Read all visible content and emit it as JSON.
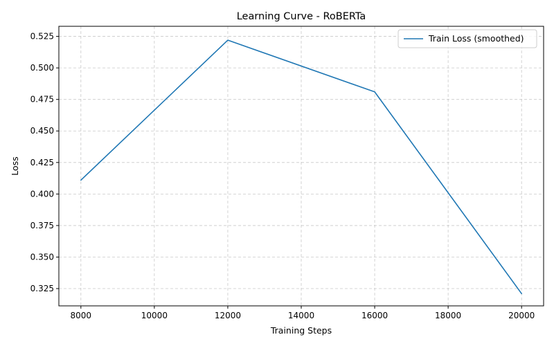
{
  "chart_data": {
    "type": "line",
    "title": "Learning Curve - RoBERTa",
    "xlabel": "Training Steps",
    "ylabel": "Loss",
    "xlim": [
      7400,
      20600
    ],
    "ylim": [
      0.3113,
      0.533
    ],
    "xticks": [
      8000,
      10000,
      12000,
      14000,
      16000,
      18000,
      20000
    ],
    "yticks": [
      0.325,
      0.35,
      0.375,
      0.4,
      0.425,
      0.45,
      0.475,
      0.5,
      0.525
    ],
    "xtick_labels": [
      "8000",
      "10000",
      "12000",
      "14000",
      "16000",
      "18000",
      "20000"
    ],
    "ytick_labels": [
      "0.325",
      "0.350",
      "0.375",
      "0.400",
      "0.425",
      "0.450",
      "0.475",
      "0.500",
      "0.525"
    ],
    "grid": true,
    "legend_position": "top-right",
    "series": [
      {
        "name": "Train Loss (smoothed)",
        "color": "#1f77b4",
        "x": [
          8000,
          12000,
          16000,
          20000
        ],
        "y": [
          0.411,
          0.522,
          0.481,
          0.321
        ]
      }
    ]
  }
}
